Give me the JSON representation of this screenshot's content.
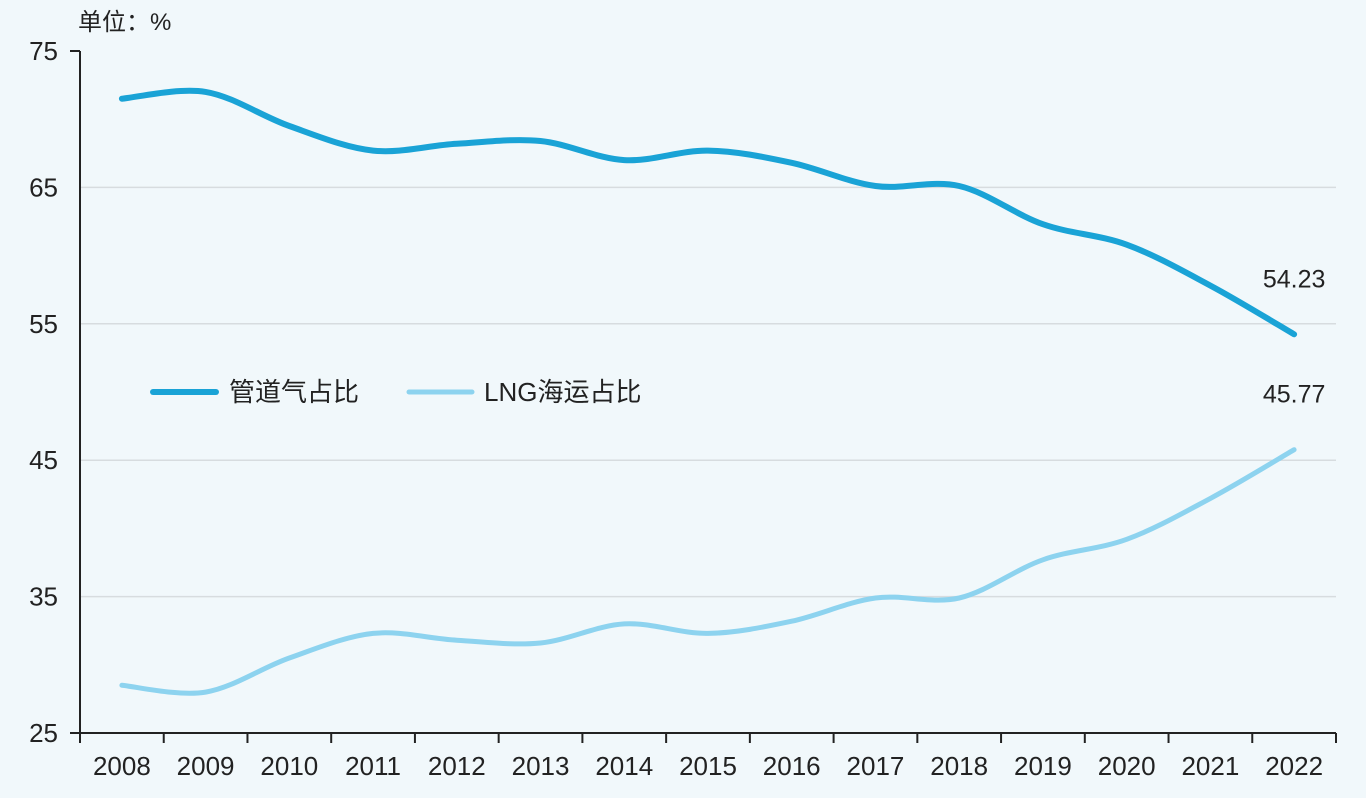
{
  "chart_data": {
    "type": "line",
    "unit_label": "单位：%",
    "x": [
      "2008",
      "2009",
      "2010",
      "2011",
      "2012",
      "2013",
      "2014",
      "2015",
      "2016",
      "2017",
      "2018",
      "2019",
      "2020",
      "2021",
      "2022"
    ],
    "ylim": [
      25,
      75
    ],
    "yticks": [
      25,
      35,
      45,
      55,
      65,
      75
    ],
    "grid": true,
    "legend_position": "center-left",
    "series": [
      {
        "name": "管道气占比",
        "color": "#1aa3d6",
        "values": [
          71.5,
          72.0,
          69.5,
          67.7,
          68.2,
          68.4,
          67.0,
          67.7,
          66.8,
          65.1,
          65.1,
          62.3,
          60.8,
          57.8,
          54.23
        ]
      },
      {
        "name": "LNG海运占比",
        "color": "#8dd3ef",
        "values": [
          28.5,
          28.0,
          30.5,
          32.3,
          31.8,
          31.6,
          33.0,
          32.3,
          33.2,
          34.9,
          34.9,
          37.7,
          39.2,
          42.2,
          45.77
        ]
      }
    ],
    "annotations": [
      {
        "series": 0,
        "index": 14,
        "text": "54.23"
      },
      {
        "series": 1,
        "index": 14,
        "text": "45.77"
      }
    ]
  }
}
